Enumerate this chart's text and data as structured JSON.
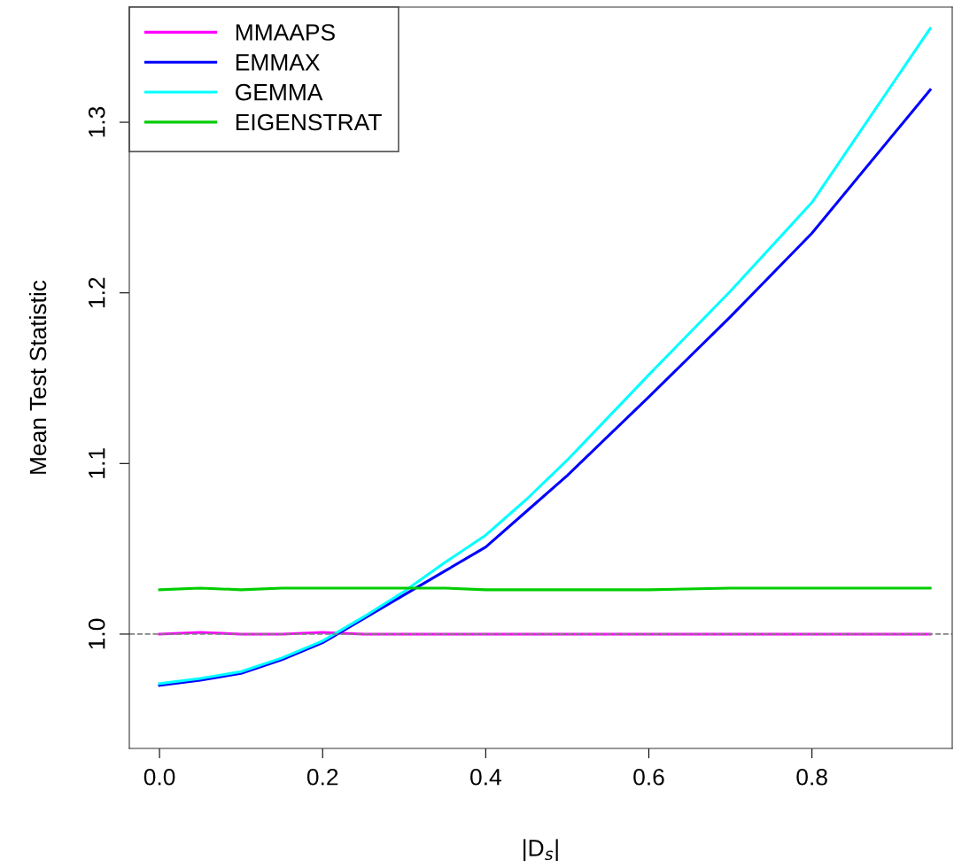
{
  "chart_data": {
    "type": "line",
    "xlabel": "|D$_{s}$|",
    "ylabel": "Mean Test Statistic",
    "x": [
      0.0,
      0.05,
      0.1,
      0.15,
      0.2,
      0.25,
      0.3,
      0.35,
      0.4,
      0.45,
      0.5,
      0.6,
      0.7,
      0.8,
      0.945
    ],
    "series": [
      {
        "name": "MMAAPS",
        "color": "#ff00ff",
        "values": [
          1.0,
          1.001,
          1.0,
          1.0,
          1.001,
          1.0,
          1.0,
          1.0,
          1.0,
          1.0,
          1.0,
          1.0,
          1.0,
          1.0,
          1.0
        ]
      },
      {
        "name": "EMMAX",
        "color": "#0000ff",
        "values": [
          0.97,
          0.973,
          0.977,
          0.985,
          0.995,
          1.009,
          1.023,
          1.037,
          1.051,
          1.072,
          1.093,
          1.139,
          1.186,
          1.235,
          1.319
        ]
      },
      {
        "name": "GEMMA",
        "color": "#00ffff",
        "values": [
          0.971,
          0.974,
          0.978,
          0.986,
          0.996,
          1.01,
          1.025,
          1.042,
          1.058,
          1.079,
          1.102,
          1.152,
          1.201,
          1.253,
          1.355
        ]
      },
      {
        "name": "EIGENSTRAT",
        "color": "#00cd00",
        "values": [
          1.026,
          1.027,
          1.026,
          1.027,
          1.027,
          1.027,
          1.027,
          1.027,
          1.026,
          1.026,
          1.026,
          1.026,
          1.027,
          1.027,
          1.027
        ]
      }
    ],
    "xlim": [
      -0.037,
      0.972
    ],
    "ylim": [
      0.933,
      1.3675
    ],
    "xticks": [
      {
        "value": 0,
        "label": "0.0"
      },
      0.2,
      0.4,
      0.6,
      0.8
    ],
    "yticks": [
      {
        "value": 1,
        "label": "1.0"
      },
      1.1,
      1.2,
      1.3
    ],
    "ref_lines": [
      {
        "axis": "y",
        "value": 1,
        "label": null,
        "color": "#808080",
        "line_style": "dashed"
      }
    ],
    "legend": "top left",
    "grid": false,
    "marker": "none",
    "line_style": "solid"
  }
}
